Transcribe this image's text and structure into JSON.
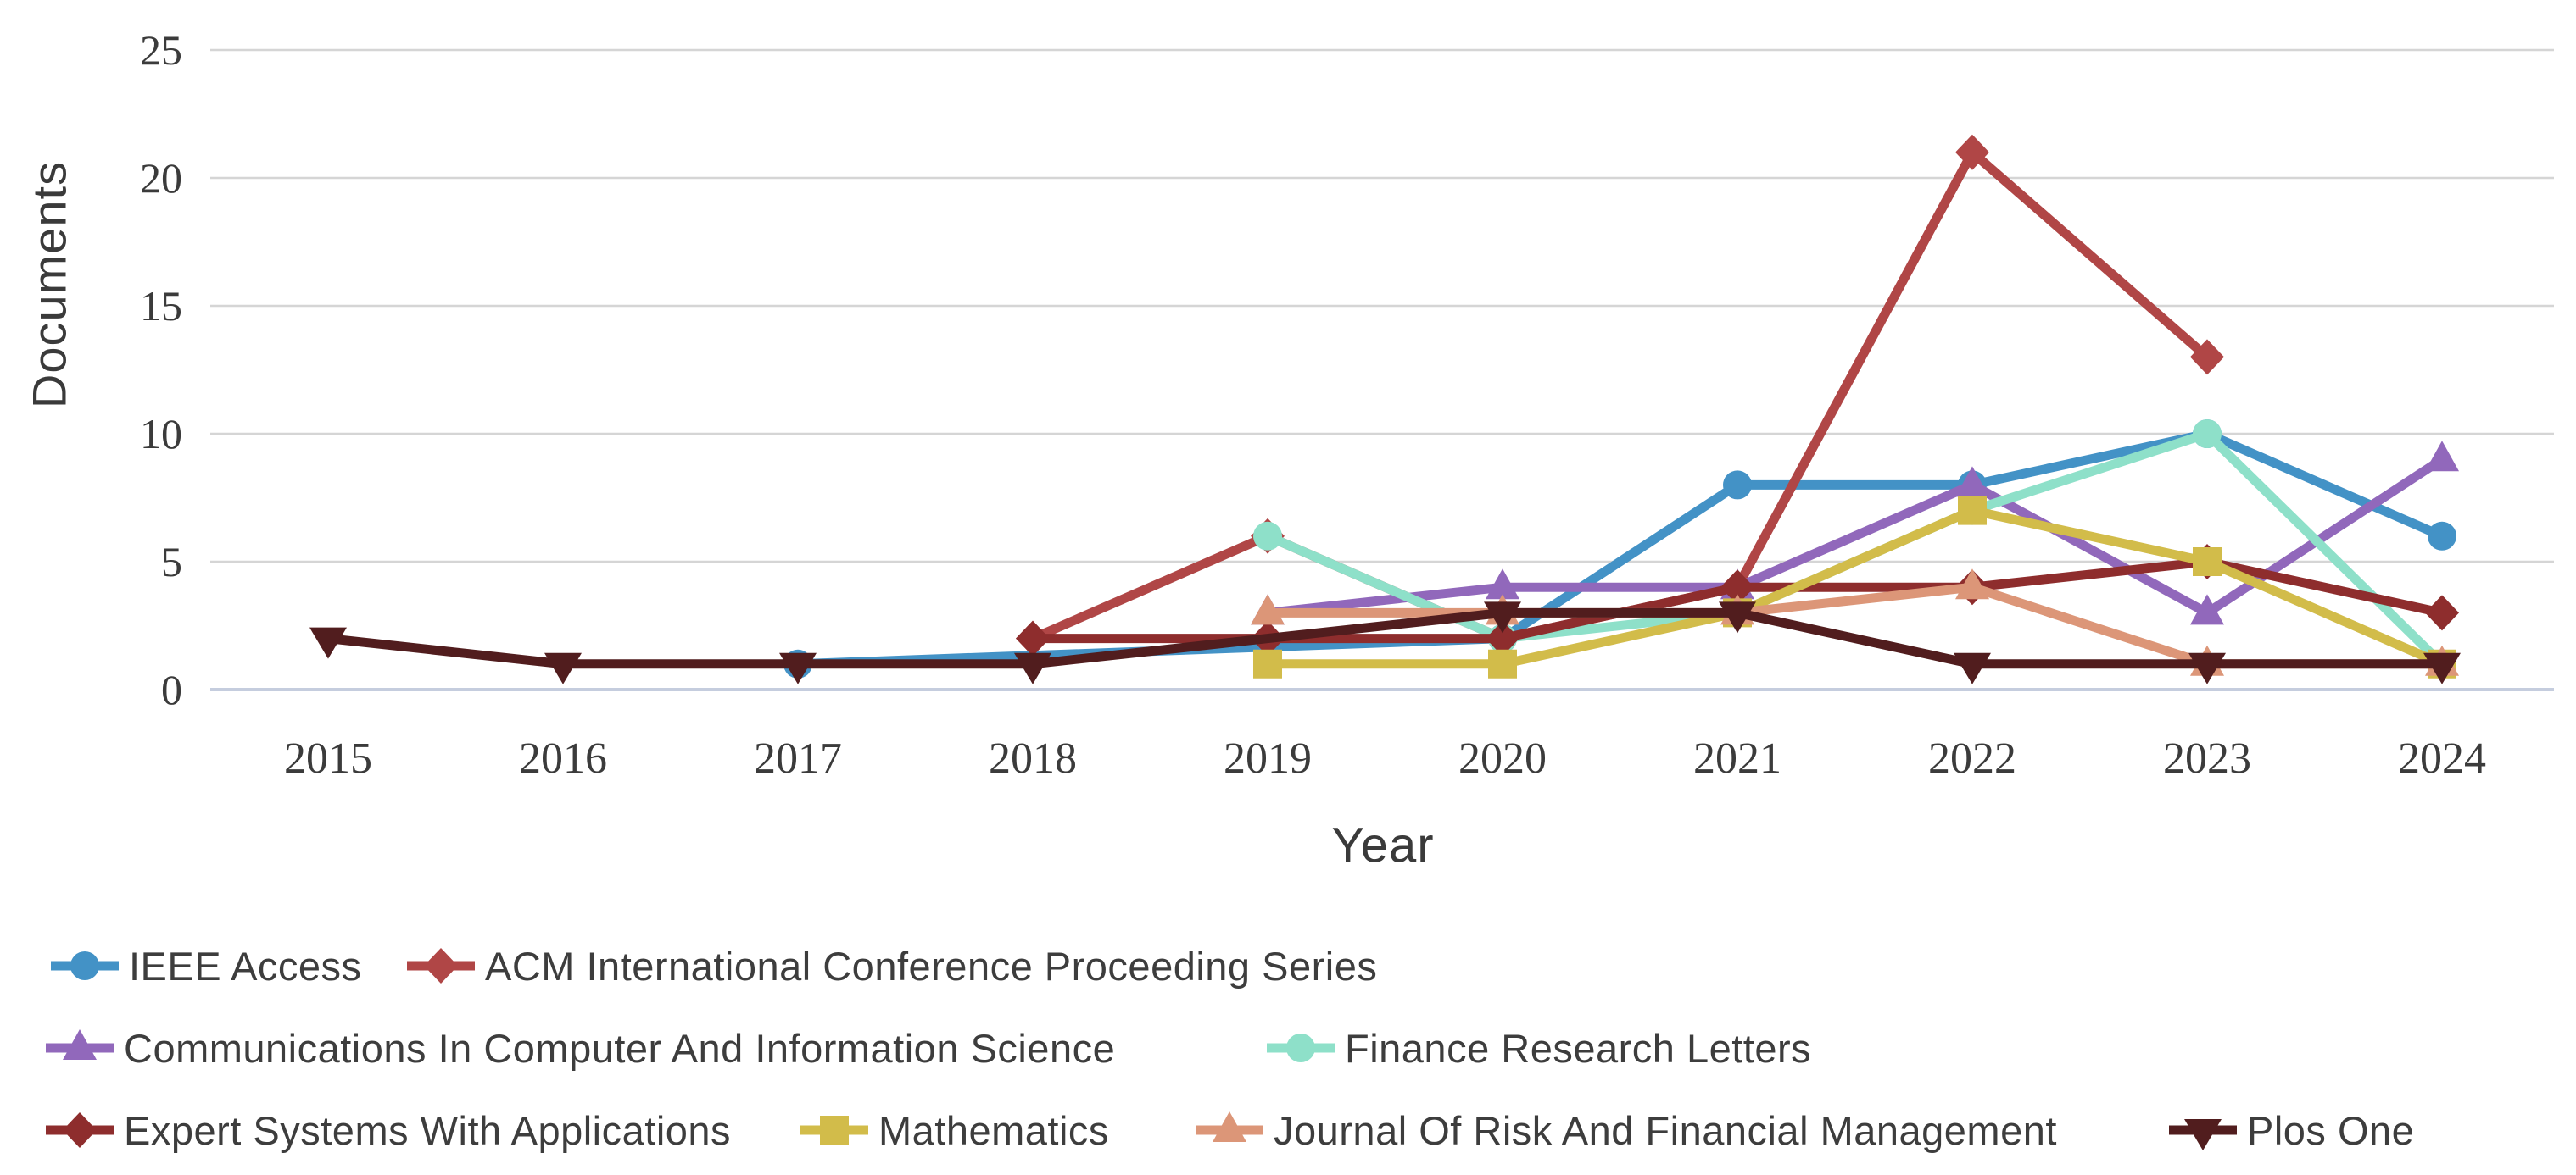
{
  "chart_data": {
    "type": "line",
    "title": "",
    "xlabel": "Year",
    "ylabel": "Documents",
    "x_ticks": [
      2015,
      2016,
      2017,
      2018,
      2019,
      2020,
      2021,
      2022,
      2023,
      2024
    ],
    "y_ticks": [
      0,
      5,
      10,
      15,
      20,
      25
    ],
    "ylim": [
      0,
      25
    ],
    "grid": "horizontal",
    "grid_color": "#d5d5d5",
    "baseline_color": "#c5cdde",
    "tick_color": "#3b3b3b",
    "legend_position": "bottom-left",
    "series": [
      {
        "name": "IEEE Access",
        "color": "#4392c6",
        "marker": "circle",
        "points": [
          [
            2017,
            1
          ],
          [
            2020,
            2
          ],
          [
            2021,
            8
          ],
          [
            2022,
            8
          ],
          [
            2023,
            10
          ],
          [
            2024,
            6
          ]
        ]
      },
      {
        "name": "ACM International Conference Proceeding Series",
        "color": "#b04646",
        "marker": "diamond",
        "points": [
          [
            2018,
            2
          ],
          [
            2019,
            6
          ],
          [
            2020,
            2
          ],
          [
            2021,
            4
          ],
          [
            2022,
            21
          ],
          [
            2023,
            13
          ]
        ]
      },
      {
        "name": "Communications In Computer And Information Science",
        "color": "#9168bb",
        "marker": "triangle-up",
        "points": [
          [
            2019,
            3
          ],
          [
            2020,
            4
          ],
          [
            2021,
            4
          ],
          [
            2022,
            8
          ],
          [
            2023,
            3
          ],
          [
            2024,
            9
          ]
        ]
      },
      {
        "name": "Finance Research Letters",
        "color": "#8ee0c9",
        "marker": "circle",
        "points": [
          [
            2019,
            6
          ],
          [
            2020,
            2
          ],
          [
            2021,
            3
          ],
          [
            2022,
            7
          ],
          [
            2023,
            10
          ],
          [
            2024,
            1
          ]
        ]
      },
      {
        "name": "Expert Systems With Applications",
        "color": "#8e2d2d",
        "marker": "diamond",
        "points": [
          [
            2018,
            2
          ],
          [
            2019,
            2
          ],
          [
            2020,
            2
          ],
          [
            2021,
            4
          ],
          [
            2022,
            4
          ],
          [
            2023,
            5
          ],
          [
            2024,
            3
          ]
        ]
      },
      {
        "name": "Mathematics",
        "color": "#d2bc4a",
        "marker": "square",
        "points": [
          [
            2019,
            1
          ],
          [
            2020,
            1
          ],
          [
            2021,
            3
          ],
          [
            2022,
            7
          ],
          [
            2023,
            5
          ],
          [
            2024,
            1
          ]
        ]
      },
      {
        "name": "Journal Of Risk And Financial Management",
        "color": "#dc9678",
        "marker": "triangle-up",
        "points": [
          [
            2019,
            3
          ],
          [
            2020,
            3
          ],
          [
            2021,
            3
          ],
          [
            2022,
            4
          ],
          [
            2023,
            1
          ],
          [
            2024,
            1
          ]
        ]
      },
      {
        "name": "Plos One",
        "color": "#511d1e",
        "marker": "triangle-down",
        "points": [
          [
            2015,
            2
          ],
          [
            2016,
            1
          ],
          [
            2017,
            1
          ],
          [
            2018,
            1
          ],
          [
            2020,
            3
          ],
          [
            2021,
            3
          ],
          [
            2022,
            1
          ],
          [
            2023,
            1
          ],
          [
            2024,
            1
          ]
        ]
      }
    ]
  }
}
